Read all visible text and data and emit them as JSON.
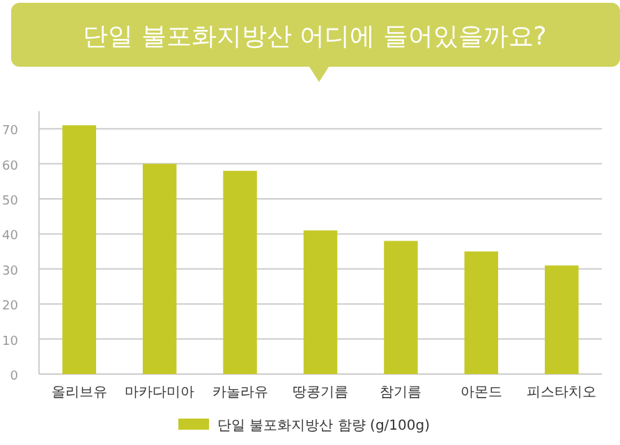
{
  "chart_data": {
    "type": "bar",
    "title": "단일 불포화지방산 어디에 들어있을까요?",
    "categories": [
      "올리브유",
      "마카다미아",
      "카놀라유",
      "땅콩기름",
      "참기름",
      "아몬드",
      "피스타치오"
    ],
    "series": [
      {
        "name": "단일 불포화지방산 함량 (g/100g)",
        "color": "#c5c928",
        "values": [
          71,
          60,
          58,
          41,
          38,
          35,
          31
        ]
      }
    ],
    "ylim": [
      0,
      75
    ],
    "yticks": [
      0,
      10,
      20,
      30,
      40,
      50,
      60,
      70
    ],
    "grid": "y",
    "legend": "bottom"
  }
}
